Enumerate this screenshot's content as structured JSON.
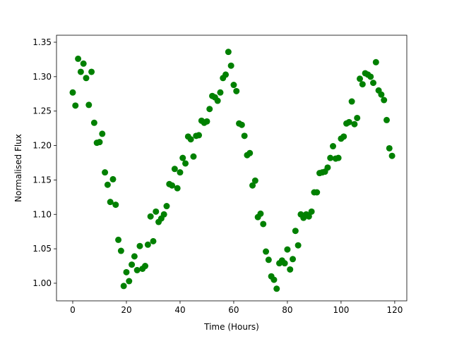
{
  "chart_data": {
    "type": "scatter",
    "x_label": "Time (Hours)",
    "y_label": "Normalised Flux",
    "xlim": [
      -6.05,
      124.5
    ],
    "ylim": [
      0.9744,
      1.3602
    ],
    "xticks": [
      0,
      20,
      40,
      60,
      80,
      100,
      120
    ],
    "yticks": [
      {
        "value": 1,
        "label": "1.00"
      },
      1.05,
      {
        "value": 1.1,
        "label": "1.10"
      },
      1.15,
      {
        "value": 1.2,
        "label": "1.20"
      },
      1.25,
      {
        "value": 1.3,
        "label": "1.30"
      },
      1.35
    ],
    "grid": false,
    "series": [
      {
        "color": "#008000",
        "x": [
          0,
          1,
          2,
          3,
          4,
          5,
          6,
          7,
          8,
          9,
          10,
          11,
          12,
          13,
          14,
          15,
          16,
          17,
          18,
          19,
          20,
          21,
          22,
          23,
          24,
          25,
          26,
          27,
          28,
          29,
          30,
          31,
          32,
          33,
          34,
          35,
          36,
          37,
          38,
          39,
          40,
          41,
          42,
          43,
          44,
          45,
          46,
          47,
          48,
          49,
          50,
          51,
          52,
          53,
          54,
          55,
          56,
          57,
          58,
          59,
          60,
          61,
          62,
          63,
          64,
          65,
          66,
          67,
          68,
          69,
          70,
          71,
          72,
          73,
          74,
          75,
          76,
          77,
          78,
          79,
          80,
          81,
          82,
          83,
          84,
          85,
          86,
          87,
          88,
          89,
          90,
          91,
          92,
          93,
          94,
          95,
          96,
          97,
          98,
          99,
          100,
          101,
          102,
          103,
          104,
          105,
          106,
          107,
          108,
          109,
          110,
          111,
          112,
          113,
          114,
          115,
          116,
          117,
          118,
          119
        ],
        "values": [
          1.277,
          1.258,
          1.326,
          1.307,
          1.319,
          1.298,
          1.259,
          1.307,
          1.233,
          1.204,
          1.205,
          1.217,
          1.161,
          1.143,
          1.118,
          1.151,
          1.114,
          1.063,
          1.047,
          0.996,
          1.016,
          1.003,
          1.027,
          1.039,
          1.019,
          1.054,
          1.021,
          1.025,
          1.056,
          1.097,
          1.061,
          1.104,
          1.089,
          1.094,
          1.1,
          1.112,
          1.144,
          1.142,
          1.166,
          1.138,
          1.161,
          1.182,
          1.174,
          1.213,
          1.209,
          1.184,
          1.214,
          1.215,
          1.236,
          1.233,
          1.235,
          1.253,
          1.272,
          1.27,
          1.265,
          1.277,
          1.298,
          1.303,
          1.336,
          1.316,
          1.288,
          1.279,
          1.232,
          1.23,
          1.214,
          1.186,
          1.189,
          1.142,
          1.149,
          1.096,
          1.101,
          1.086,
          1.046,
          1.034,
          1.01,
          1.005,
          0.992,
          1.029,
          1.033,
          1.029,
          1.049,
          1.02,
          1.035,
          1.076,
          1.055,
          1.1,
          1.095,
          1.1,
          1.097,
          1.104,
          1.132,
          1.132,
          1.16,
          1.161,
          1.162,
          1.168,
          1.182,
          1.199,
          1.181,
          1.182,
          1.21,
          1.213,
          1.232,
          1.234,
          1.264,
          1.231,
          1.24,
          1.297,
          1.289,
          1.305,
          1.303,
          1.3,
          1.291,
          1.321,
          1.28,
          1.274,
          1.266,
          1.237,
          1.196,
          1.185
        ]
      }
    ]
  }
}
